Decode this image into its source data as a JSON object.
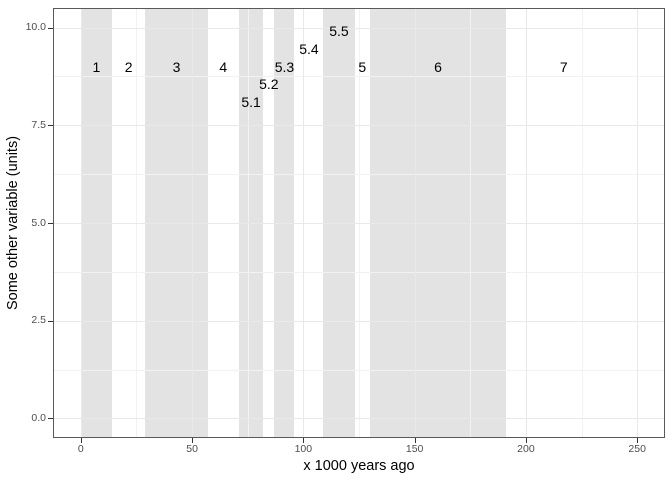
{
  "chart_data": {
    "type": "area",
    "title": "",
    "xlabel": "x 1000 years ago",
    "ylabel": "Some other variable (units)",
    "xlim": [
      -12.5,
      262.5
    ],
    "ylim": [
      -0.5,
      10.5
    ],
    "grid": "major+minor",
    "legend": "none",
    "x_major_ticks": [
      0,
      50,
      100,
      150,
      200,
      250
    ],
    "x_tick_labels": [
      "0",
      "50",
      "100",
      "150",
      "200",
      "250"
    ],
    "x_minor_ticks": [
      25,
      75,
      125,
      175,
      225
    ],
    "y_major_ticks": [
      0,
      2.5,
      5,
      7.5,
      10
    ],
    "y_tick_labels": [
      "0.0",
      "2.5",
      "5.0",
      "7.5",
      "10.0"
    ],
    "y_minor_ticks": [
      1.25,
      3.75,
      6.25,
      8.75
    ],
    "shaded_bands": [
      {
        "stage": "1",
        "xmin": 0,
        "xmax": 14
      },
      {
        "stage": "3",
        "xmin": 29,
        "xmax": 57
      },
      {
        "stage": "5.1",
        "xmin": 71,
        "xmax": 82
      },
      {
        "stage": "5.3",
        "xmin": 87,
        "xmax": 96
      },
      {
        "stage": "5.5",
        "xmin": 109,
        "xmax": 123
      },
      {
        "stage": "6",
        "xmin": 130,
        "xmax": 191
      }
    ],
    "labels": [
      {
        "text": "1",
        "x": 7,
        "y": 9
      },
      {
        "text": "2",
        "x": 21.5,
        "y": 9
      },
      {
        "text": "3",
        "x": 43,
        "y": 9
      },
      {
        "text": "4",
        "x": 64,
        "y": 9
      },
      {
        "text": "5.1",
        "x": 76.5,
        "y": 8.1
      },
      {
        "text": "5.2",
        "x": 84.5,
        "y": 8.55
      },
      {
        "text": "5.3",
        "x": 91.5,
        "y": 9
      },
      {
        "text": "5.4",
        "x": 102.5,
        "y": 9.45
      },
      {
        "text": "5.5",
        "x": 116,
        "y": 9.9
      },
      {
        "text": "5",
        "x": 126.5,
        "y": 9
      },
      {
        "text": "6",
        "x": 160.5,
        "y": 9
      },
      {
        "text": "7",
        "x": 217,
        "y": 9
      }
    ],
    "colors": {
      "background": "#FFFFFF",
      "band_fill": "#E3E3E3",
      "grid_major": "#E9E9E9",
      "grid_minor": "#F2F2F2",
      "panel_border": "#595959",
      "tick_mark": "#333333",
      "tick_label": "#4D4D4D",
      "axis_title": "#000000",
      "stage_label": "#000000"
    }
  }
}
